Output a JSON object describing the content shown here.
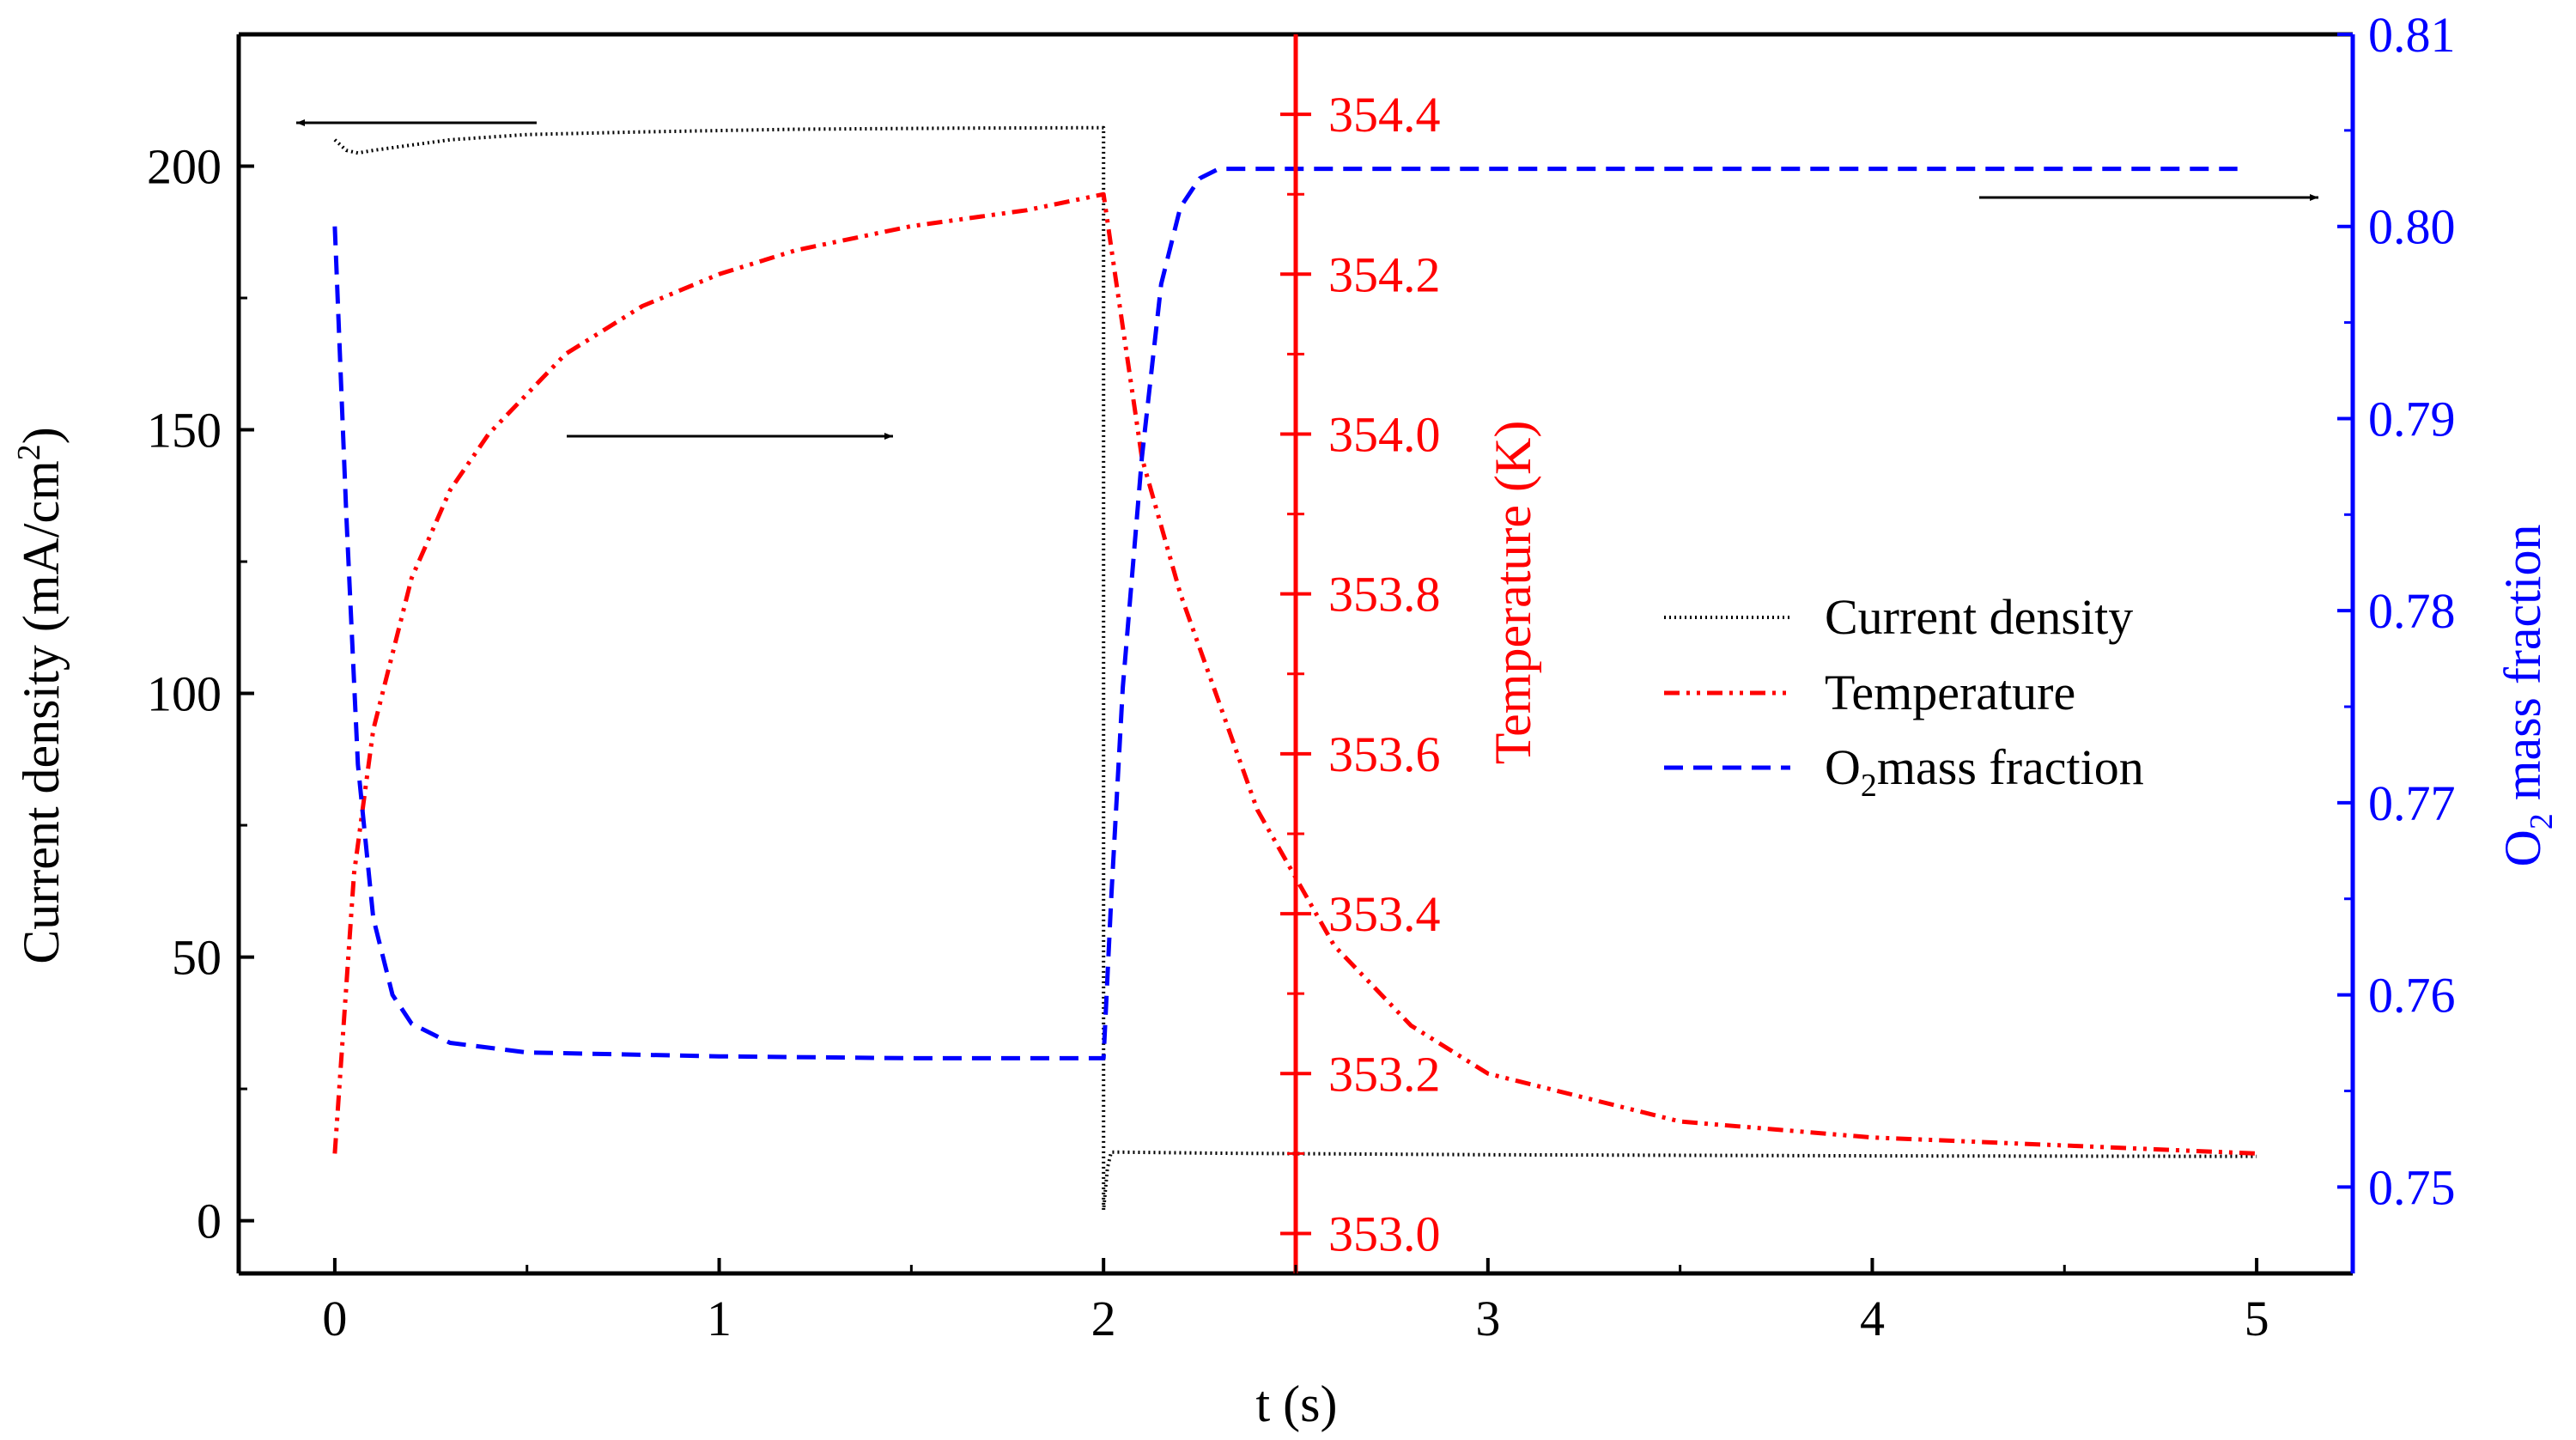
{
  "chart_data": {
    "type": "line",
    "title": "",
    "xlabel": "t (s)",
    "xlim": [
      -0.25,
      5.25
    ],
    "xticks": [
      0,
      1,
      2,
      3,
      4,
      5
    ],
    "xtick_labels": [
      "0",
      "1",
      "2",
      "3",
      "4",
      "5"
    ],
    "axes": {
      "left": {
        "label_prefix": "Current density (mA/cm",
        "label_sup": "2",
        "label_suffix": ")",
        "ylim": [
          -10,
          225
        ],
        "ticks": [
          0,
          50,
          100,
          150,
          200
        ],
        "tick_labels": [
          "0",
          "50",
          "100",
          "150",
          "200"
        ],
        "color": "#000000"
      },
      "temperature": {
        "label": "Temperature (K)",
        "ylim": [
          352.95,
          354.5
        ],
        "ticks": [
          353.0,
          353.2,
          353.4,
          353.6,
          353.8,
          354.0,
          354.2,
          354.4
        ],
        "tick_labels": [
          "353.0",
          "353.2",
          "353.4",
          "353.6",
          "353.8",
          "354.0",
          "354.2",
          "354.4"
        ],
        "axis_x_value": 2.5,
        "color": "#ff0000"
      },
      "right": {
        "label_prefix": "O",
        "label_sub": "2",
        "label_suffix": " mass fraction",
        "ylim": [
          0.7455,
          0.81
        ],
        "ticks": [
          0.75,
          0.76,
          0.77,
          0.78,
          0.79,
          0.8,
          0.81
        ],
        "tick_labels": [
          "0.75",
          "0.76",
          "0.77",
          "0.78",
          "0.79",
          "0.80",
          "0.81"
        ],
        "color": "#0000ff"
      }
    },
    "series": [
      {
        "name": "Current density",
        "axis": "left",
        "color": "#000000",
        "style": "dot",
        "x": [
          0,
          0.03,
          0.06,
          0.1,
          0.2,
          0.3,
          0.5,
          0.8,
          1.2,
          1.6,
          1.99,
          2.0,
          2.0,
          2.01,
          2.02,
          2.05,
          2.3,
          3.0,
          4.0,
          5.0
        ],
        "y": [
          205,
          203,
          202.5,
          203,
          204,
          205,
          206,
          206.5,
          207,
          207.2,
          207.3,
          207.3,
          2,
          10,
          13,
          13,
          12.8,
          12.5,
          12.3,
          12.2
        ]
      },
      {
        "name": "Temperature",
        "axis": "temperature",
        "color": "#ff0000",
        "style": "dashdotdot",
        "x": [
          0,
          0.05,
          0.1,
          0.2,
          0.3,
          0.4,
          0.6,
          0.8,
          1.0,
          1.2,
          1.5,
          1.8,
          2.0,
          2.03,
          2.1,
          2.2,
          2.4,
          2.6,
          2.8,
          3.0,
          3.5,
          4.0,
          4.5,
          5.0
        ],
        "y": [
          353.1,
          353.45,
          353.63,
          353.82,
          353.93,
          354.0,
          354.1,
          354.16,
          354.2,
          354.23,
          354.26,
          354.28,
          354.3,
          354.2,
          353.97,
          353.8,
          353.53,
          353.36,
          353.26,
          353.2,
          353.14,
          353.12,
          353.11,
          353.1
        ]
      },
      {
        "name": "O2mass fraction",
        "axis": "right",
        "color": "#0000ff",
        "style": "dash",
        "x": [
          0,
          0.03,
          0.06,
          0.1,
          0.15,
          0.2,
          0.3,
          0.5,
          1.0,
          1.5,
          1.99,
          2.0,
          2.02,
          2.05,
          2.1,
          2.15,
          2.2,
          2.25,
          2.3,
          2.4,
          3.0,
          4.0,
          4.95
        ],
        "y": [
          0.8,
          0.785,
          0.772,
          0.764,
          0.76,
          0.7585,
          0.7575,
          0.757,
          0.7568,
          0.7567,
          0.7567,
          0.7567,
          0.765,
          0.776,
          0.788,
          0.797,
          0.801,
          0.8025,
          0.803,
          0.803,
          0.803,
          0.803,
          0.803
        ]
      }
    ],
    "legend": {
      "position": "center-right",
      "entries": [
        "Current density",
        "Temperature",
        "O2mass fraction"
      ]
    },
    "annotations": [
      {
        "type": "arrow",
        "points_to": "left axis"
      },
      {
        "type": "arrow",
        "points_to": "temperature axis"
      },
      {
        "type": "arrow",
        "points_to": "right axis"
      }
    ]
  }
}
